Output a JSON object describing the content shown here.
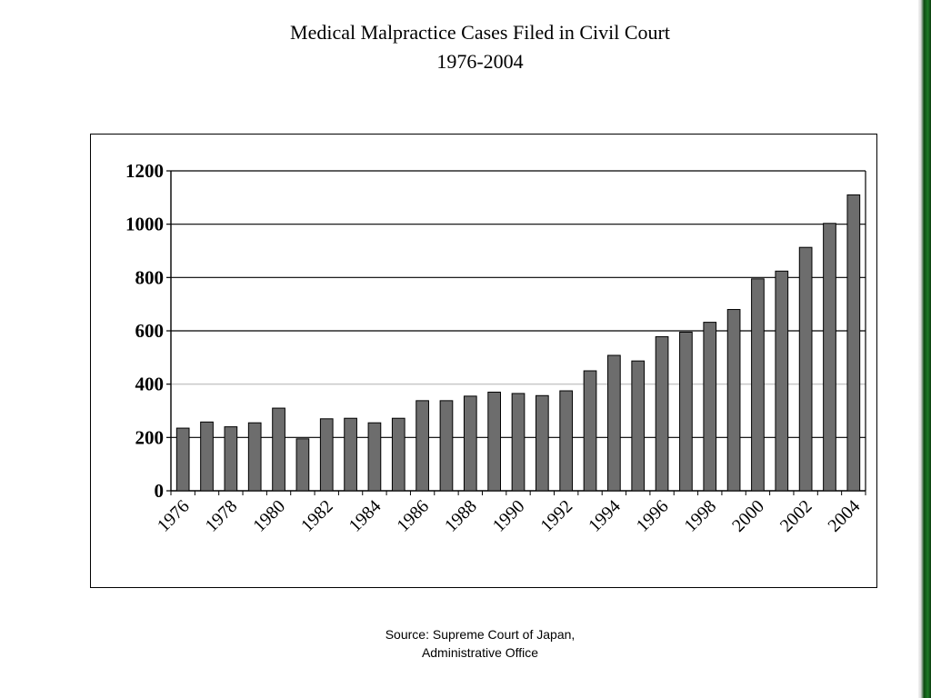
{
  "title_lines": [
    "Medical Malpractice Cases Filed in Civil Court",
    "1976-2004"
  ],
  "source_lines": [
    "Source: Supreme Court of Japan,",
    "Administrative Office"
  ],
  "colors": {
    "bar_fill": "#6d6d6d",
    "bar_stroke": "#000000",
    "gridline_dark": "#000000",
    "gridline_light": "#c8c8c8",
    "edge_strip": "#1e7a26"
  },
  "chart_data": {
    "type": "bar",
    "categories": [
      "1976",
      "1977",
      "1978",
      "1979",
      "1980",
      "1981",
      "1982",
      "1983",
      "1984",
      "1985",
      "1986",
      "1987",
      "1988",
      "1989",
      "1990",
      "1991",
      "1992",
      "1993",
      "1994",
      "1995",
      "1996",
      "1997",
      "1998",
      "1999",
      "2000",
      "2001",
      "2002",
      "2003",
      "2004"
    ],
    "values": [
      235,
      258,
      240,
      255,
      310,
      195,
      270,
      272,
      255,
      272,
      338,
      338,
      355,
      370,
      365,
      357,
      375,
      450,
      508,
      487,
      578,
      595,
      632,
      680,
      795,
      824,
      913,
      1003,
      1110
    ],
    "x_tick_labels": [
      "1976",
      "1978",
      "1980",
      "1982",
      "1984",
      "1986",
      "1988",
      "1990",
      "1992",
      "1994",
      "1996",
      "1998",
      "2000",
      "2002",
      "2004"
    ],
    "y_ticks": [
      0,
      200,
      400,
      600,
      800,
      1000,
      1200
    ],
    "ylim": [
      0,
      1200
    ],
    "grid": true,
    "legend": "none",
    "title": "",
    "xlabel": "",
    "ylabel": ""
  }
}
